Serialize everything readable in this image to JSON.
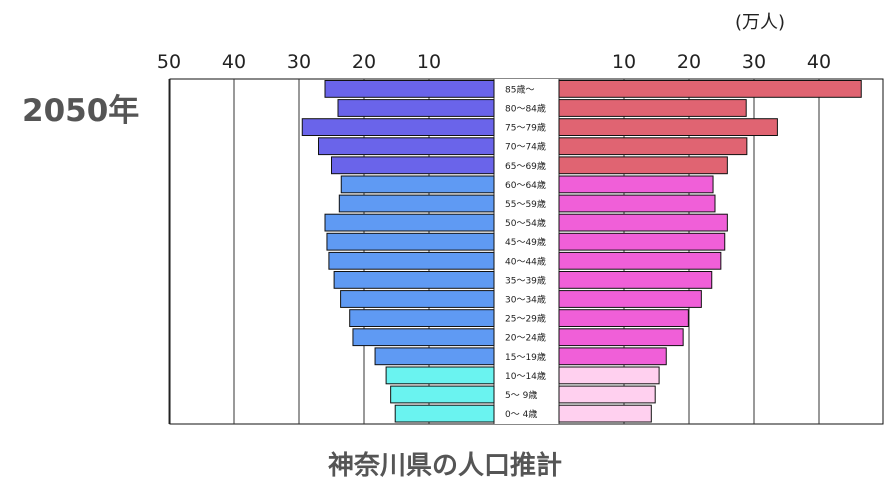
{
  "year_label": "2050年",
  "unit_label": "(万人)",
  "chart_data": {
    "type": "bar",
    "title": "神奈川県の人口推計",
    "orientation": "horizontal-population-pyramid",
    "unit": "(万人)",
    "xlim": [
      0,
      50
    ],
    "left_ticks": [
      "50",
      "40",
      "30",
      "20",
      "10"
    ],
    "right_ticks": [
      "10",
      "20",
      "30",
      "40"
    ],
    "grid": true,
    "categories": [
      "85歳～",
      "80～84歳",
      "75～79歳",
      "70～74歳",
      "65～69歳",
      "60～64歳",
      "55～59歳",
      "50～54歳",
      "45～49歳",
      "40～44歳",
      "35～39歳",
      "30～34歳",
      "25～29歳",
      "20～24歳",
      "15～19歳",
      "10～14歳",
      "5～ 9歳",
      "0～ 4歳"
    ],
    "series": [
      {
        "side": "left",
        "values": [
          26,
          24,
          29.5,
          27,
          25,
          23.5,
          23.8,
          26,
          25.7,
          25.4,
          24.6,
          23.6,
          22.2,
          21.7,
          18.3,
          16.6,
          15.9,
          15.2
        ]
      },
      {
        "side": "right",
        "values": [
          46.5,
          28.8,
          33.6,
          28.9,
          25.9,
          23.7,
          24,
          25.9,
          25.5,
          24.9,
          23.5,
          21.9,
          19.9,
          19.1,
          16.5,
          15.4,
          14.8,
          14.2
        ]
      }
    ],
    "colors": {
      "left_elderly": "#6a64ea",
      "left_working": "#5f9af3",
      "left_young": "#6af3f0",
      "right_elderly": "#e06472",
      "right_working": "#f05fd8",
      "right_young": "#ffd0ef",
      "border": "#111111",
      "grid": "#333333"
    }
  }
}
